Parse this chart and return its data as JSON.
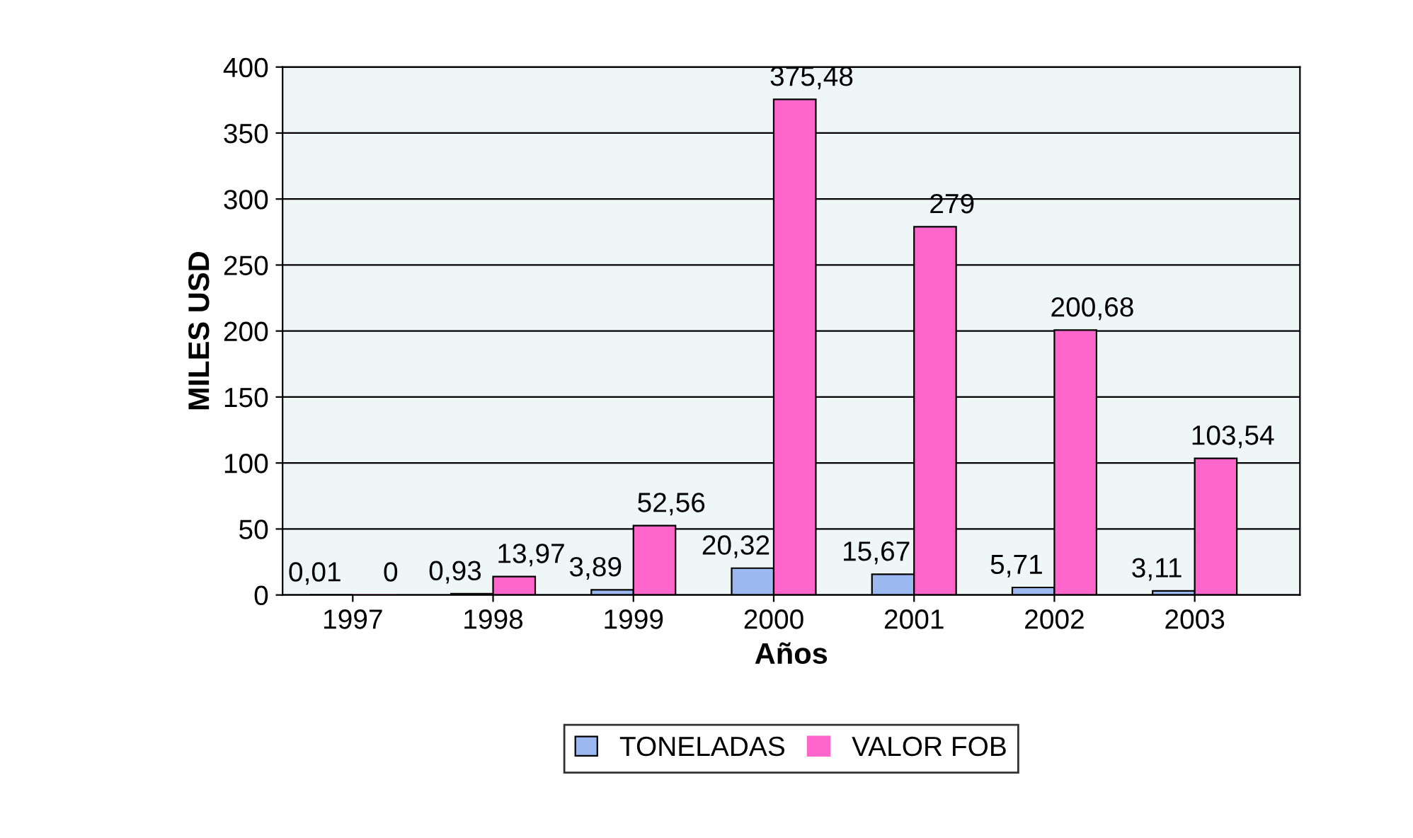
{
  "chart_data": {
    "type": "bar",
    "xlabel": "Años",
    "ylabel": "MILES USD",
    "categories": [
      "1997",
      "1998",
      "1999",
      "2000",
      "2001",
      "2002",
      "2003"
    ],
    "series": [
      {
        "name": "TONELADAS",
        "color": "#9bb8f0",
        "values": [
          0.01,
          0.93,
          3.89,
          20.32,
          15.67,
          5.71,
          3.11
        ],
        "value_labels": [
          "0,01",
          "0,93",
          "3,89",
          "20,32",
          "15,67",
          "5,71",
          "3,11"
        ]
      },
      {
        "name": "VALOR FOB",
        "color": "#ff66cc",
        "values": [
          0,
          13.97,
          52.56,
          375.48,
          279,
          200.68,
          103.54
        ],
        "value_labels": [
          "0",
          "13,97",
          "52,56",
          "375,48",
          "279",
          "200,68",
          "103,54"
        ]
      }
    ],
    "ylim": [
      0,
      400
    ],
    "yticks": [
      0,
      50,
      100,
      150,
      200,
      250,
      300,
      350,
      400
    ],
    "grid": "y",
    "legend": "bottom"
  }
}
